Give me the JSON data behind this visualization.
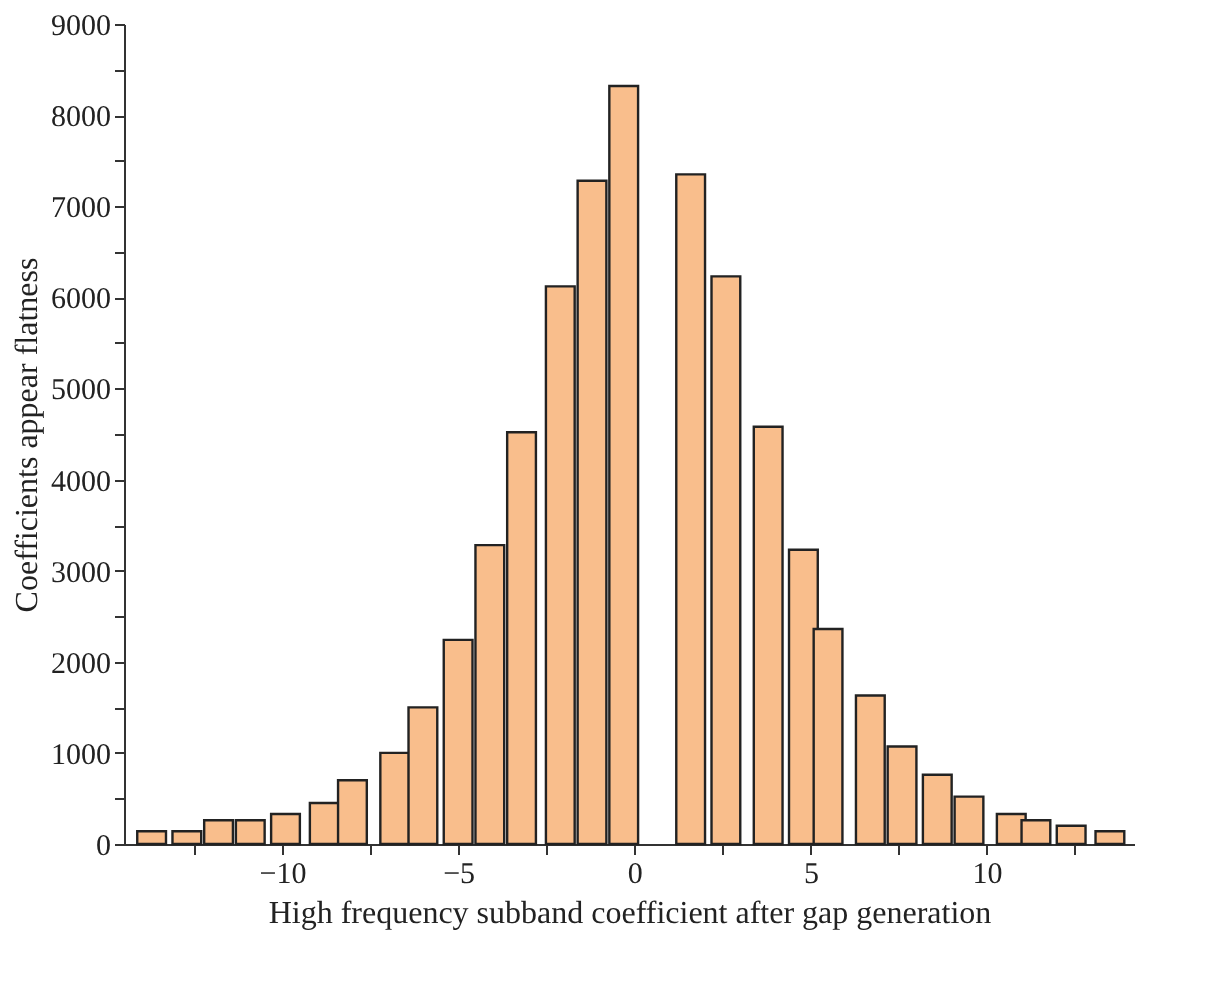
{
  "chart_data": {
    "type": "bar",
    "xlabel": "High frequency subband coefficient after gap generation",
    "ylabel": "Coefficients appear flatness",
    "x": [
      -13.7,
      -12.7,
      -11.8,
      -10.9,
      -9.9,
      -8.8,
      -8.0,
      -6.8,
      -6.0,
      -5.0,
      -4.1,
      -3.2,
      -2.1,
      -1.2,
      -0.3,
      1.6,
      2.6,
      3.8,
      4.8,
      5.5,
      6.7,
      7.6,
      8.6,
      9.5,
      10.7,
      11.4,
      12.4,
      13.5
    ],
    "values": [
      140,
      140,
      260,
      260,
      330,
      450,
      700,
      1000,
      1500,
      2240,
      3280,
      4520,
      6120,
      7280,
      8320,
      7350,
      6230,
      4580,
      3230,
      2360,
      1630,
      1070,
      760,
      520,
      330,
      260,
      200,
      140
    ],
    "color": "#f9be8c",
    "xlim": [
      -14.2,
      13.9
    ],
    "xticks": [
      {
        "value": -12.5,
        "label": null
      },
      -10,
      {
        "value": -7.5,
        "label": null
      },
      -5,
      {
        "value": -2.5,
        "label": null
      },
      0,
      {
        "value": 2.5,
        "label": null
      },
      5,
      {
        "value": 7.5,
        "label": null
      },
      10,
      {
        "value": 12.5,
        "label": null
      }
    ],
    "ylim": [
      0,
      9000
    ],
    "yticks": [
      0,
      {
        "value": 500,
        "label": null
      },
      1000,
      {
        "value": 1500,
        "label": null
      },
      2000,
      {
        "value": 2500,
        "label": null
      },
      3000,
      {
        "value": 3500,
        "label": null
      },
      4000,
      {
        "value": 4500,
        "label": null
      },
      5000,
      {
        "value": 5500,
        "label": null
      },
      6000,
      {
        "value": 6500,
        "label": null
      },
      7000,
      {
        "value": 7500,
        "label": null
      },
      8000,
      {
        "value": 8500,
        "label": null
      },
      9000
    ],
    "grid": false
  }
}
